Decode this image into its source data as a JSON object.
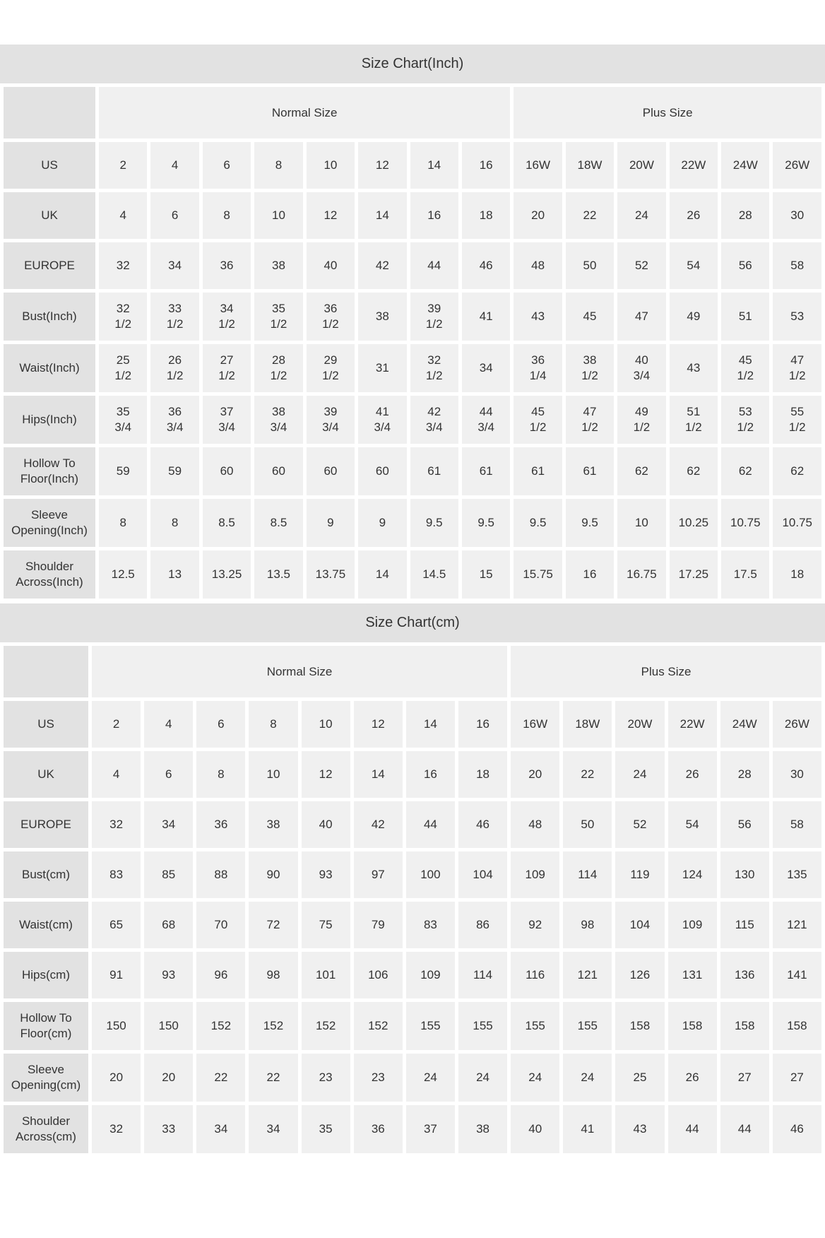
{
  "colors": {
    "page_bg": "#ffffff",
    "title_bg": "#e2e2e2",
    "label_bg": "#e2e2e2",
    "cell_bg": "#f0f0f0",
    "text_color": "#333333"
  },
  "tables": [
    {
      "title": "Size Chart(Inch)",
      "groups": [
        {
          "label": "Normal Size",
          "span": 8
        },
        {
          "label": "Plus Size",
          "span": 6
        }
      ],
      "rows": [
        {
          "label": "US",
          "values": [
            "2",
            "4",
            "6",
            "8",
            "10",
            "12",
            "14",
            "16",
            "16W",
            "18W",
            "20W",
            "22W",
            "24W",
            "26W"
          ]
        },
        {
          "label": "UK",
          "values": [
            "4",
            "6",
            "8",
            "10",
            "12",
            "14",
            "16",
            "18",
            "20",
            "22",
            "24",
            "26",
            "28",
            "30"
          ]
        },
        {
          "label": "EUROPE",
          "values": [
            "32",
            "34",
            "36",
            "38",
            "40",
            "42",
            "44",
            "46",
            "48",
            "50",
            "52",
            "54",
            "56",
            "58"
          ]
        },
        {
          "label": "Bust(Inch)",
          "values": [
            "32\n1/2",
            "33\n1/2",
            "34\n1/2",
            "35\n1/2",
            "36\n1/2",
            "38",
            "39\n1/2",
            "41",
            "43",
            "45",
            "47",
            "49",
            "51",
            "53"
          ]
        },
        {
          "label": "Waist(Inch)",
          "values": [
            "25\n1/2",
            "26\n1/2",
            "27\n1/2",
            "28\n1/2",
            "29\n1/2",
            "31",
            "32\n1/2",
            "34",
            "36\n1/4",
            "38\n1/2",
            "40\n3/4",
            "43",
            "45\n1/2",
            "47\n1/2"
          ]
        },
        {
          "label": "Hips(Inch)",
          "values": [
            "35\n3/4",
            "36\n3/4",
            "37\n3/4",
            "38\n3/4",
            "39\n3/4",
            "41\n3/4",
            "42\n3/4",
            "44\n3/4",
            "45\n1/2",
            "47\n1/2",
            "49\n1/2",
            "51\n1/2",
            "53\n1/2",
            "55\n1/2"
          ]
        },
        {
          "label": "Hollow To\nFloor(Inch)",
          "values": [
            "59",
            "59",
            "60",
            "60",
            "60",
            "60",
            "61",
            "61",
            "61",
            "61",
            "62",
            "62",
            "62",
            "62"
          ]
        },
        {
          "label": "Sleeve\nOpening(Inch)",
          "values": [
            "8",
            "8",
            "8.5",
            "8.5",
            "9",
            "9",
            "9.5",
            "9.5",
            "9.5",
            "9.5",
            "10",
            "10.25",
            "10.75",
            "10.75"
          ]
        },
        {
          "label": "Shoulder\nAcross(Inch)",
          "values": [
            "12.5",
            "13",
            "13.25",
            "13.5",
            "13.75",
            "14",
            "14.5",
            "15",
            "15.75",
            "16",
            "16.75",
            "17.25",
            "17.5",
            "18"
          ]
        }
      ]
    },
    {
      "title": "Size Chart(cm)",
      "groups": [
        {
          "label": "Normal Size",
          "span": 8
        },
        {
          "label": "Plus Size",
          "span": 6
        }
      ],
      "rows": [
        {
          "label": "US",
          "values": [
            "2",
            "4",
            "6",
            "8",
            "10",
            "12",
            "14",
            "16",
            "16W",
            "18W",
            "20W",
            "22W",
            "24W",
            "26W"
          ]
        },
        {
          "label": "UK",
          "values": [
            "4",
            "6",
            "8",
            "10",
            "12",
            "14",
            "16",
            "18",
            "20",
            "22",
            "24",
            "26",
            "28",
            "30"
          ]
        },
        {
          "label": "EUROPE",
          "values": [
            "32",
            "34",
            "36",
            "38",
            "40",
            "42",
            "44",
            "46",
            "48",
            "50",
            "52",
            "54",
            "56",
            "58"
          ]
        },
        {
          "label": "Bust(cm)",
          "values": [
            "83",
            "85",
            "88",
            "90",
            "93",
            "97",
            "100",
            "104",
            "109",
            "114",
            "119",
            "124",
            "130",
            "135"
          ]
        },
        {
          "label": "Waist(cm)",
          "values": [
            "65",
            "68",
            "70",
            "72",
            "75",
            "79",
            "83",
            "86",
            "92",
            "98",
            "104",
            "109",
            "115",
            "121"
          ]
        },
        {
          "label": "Hips(cm)",
          "values": [
            "91",
            "93",
            "96",
            "98",
            "101",
            "106",
            "109",
            "114",
            "116",
            "121",
            "126",
            "131",
            "136",
            "141"
          ]
        },
        {
          "label": "Hollow To\nFloor(cm)",
          "values": [
            "150",
            "150",
            "152",
            "152",
            "152",
            "152",
            "155",
            "155",
            "155",
            "155",
            "158",
            "158",
            "158",
            "158"
          ]
        },
        {
          "label": "Sleeve\nOpening(cm)",
          "values": [
            "20",
            "20",
            "22",
            "22",
            "23",
            "23",
            "24",
            "24",
            "24",
            "24",
            "25",
            "26",
            "27",
            "27"
          ]
        },
        {
          "label": "Shoulder\nAcross(cm)",
          "values": [
            "32",
            "33",
            "34",
            "34",
            "35",
            "36",
            "37",
            "38",
            "40",
            "41",
            "43",
            "44",
            "44",
            "46"
          ]
        }
      ]
    }
  ]
}
